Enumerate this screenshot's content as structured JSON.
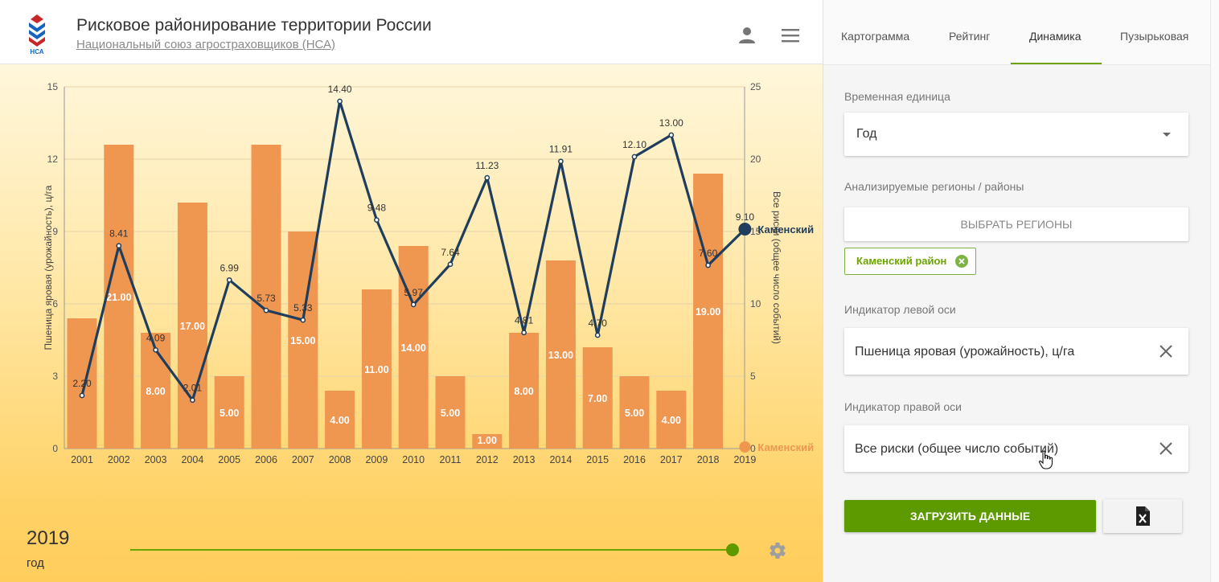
{
  "header": {
    "title": "Рисковое районирование территории России",
    "subtitle": "Национальный союз агростраховщиков (НСА)",
    "logo_text": "НСА"
  },
  "tabs": [
    {
      "label": "Картограмма",
      "active": false
    },
    {
      "label": "Рейтинг",
      "active": false
    },
    {
      "label": "Динамика",
      "active": true
    },
    {
      "label": "Пузырьковая",
      "active": false
    }
  ],
  "panel": {
    "time_unit_label": "Временная единица",
    "time_unit_value": "Год",
    "regions_label": "Анализируемые регионы / районы",
    "select_regions_button": "ВЫБРАТЬ РЕГИОНЫ",
    "selected_region": "Каменский район",
    "left_indicator_label": "Индикатор левой оси",
    "left_indicator_value": "Пшеница яровая (урожайность), ц/га",
    "right_indicator_label": "Индикатор правой оси",
    "right_indicator_value": "Все риски (общее число событий)",
    "load_button": "ЗАГРУЗИТЬ ДАННЫЕ"
  },
  "timeline": {
    "year": "2019",
    "unit": "год",
    "position": 1.0
  },
  "colors": {
    "accent": "#5c9a00",
    "bar": "#ef9651",
    "line": "#1f3d5c",
    "chip": "#6da400"
  },
  "chart_data": {
    "type": "bar+line",
    "categories": [
      "2001",
      "2002",
      "2003",
      "2004",
      "2005",
      "2006",
      "2007",
      "2008",
      "2009",
      "2010",
      "2011",
      "2012",
      "2013",
      "2014",
      "2015",
      "2016",
      "2017",
      "2018",
      "2019"
    ],
    "left_axis": {
      "label": "Пшеница яровая (урожайность), ц/га",
      "range": [
        0,
        15
      ],
      "ticks": [
        "0",
        "3",
        "6",
        "9",
        "12",
        "15"
      ]
    },
    "right_axis": {
      "label": "Все риски (общее число событий)",
      "range": [
        0,
        25
      ],
      "ticks": [
        "0",
        "5",
        "10",
        "15",
        "20",
        "25"
      ]
    },
    "series": [
      {
        "name": "Каменский",
        "kind": "bar",
        "axis": "right",
        "values": [
          9,
          21,
          8,
          17,
          5,
          21,
          15,
          4,
          11,
          14,
          5,
          1,
          8,
          13,
          7,
          5,
          4,
          19,
          null
        ],
        "labels": [
          "",
          "21.00",
          "8.00",
          "17.00",
          "5.00",
          "",
          "15.00",
          "4.00",
          "11.00",
          "14.00",
          "5.00",
          "1.00",
          "8.00",
          "13.00",
          "7.00",
          "5.00",
          "4.00",
          "19.00",
          ""
        ]
      },
      {
        "name": "Каменский",
        "kind": "line",
        "axis": "left",
        "values": [
          2.2,
          8.41,
          4.09,
          2.01,
          6.99,
          5.73,
          5.33,
          14.4,
          9.48,
          5.97,
          7.64,
          11.23,
          4.81,
          11.91,
          4.7,
          12.1,
          13.0,
          7.6,
          9.1
        ],
        "labels": [
          "2.20",
          "8.41",
          "4.09",
          "2.01",
          "6.99",
          "5.73",
          "5.33",
          "14.40",
          "9.48",
          "5.97",
          "7.64",
          "11.23",
          "4.81",
          "11.91",
          "4.70",
          "12.10",
          "13.00",
          "7.60",
          "9.10"
        ]
      }
    ],
    "legend_labels": [
      "Каменский",
      "Каменский"
    ],
    "grid": true
  }
}
